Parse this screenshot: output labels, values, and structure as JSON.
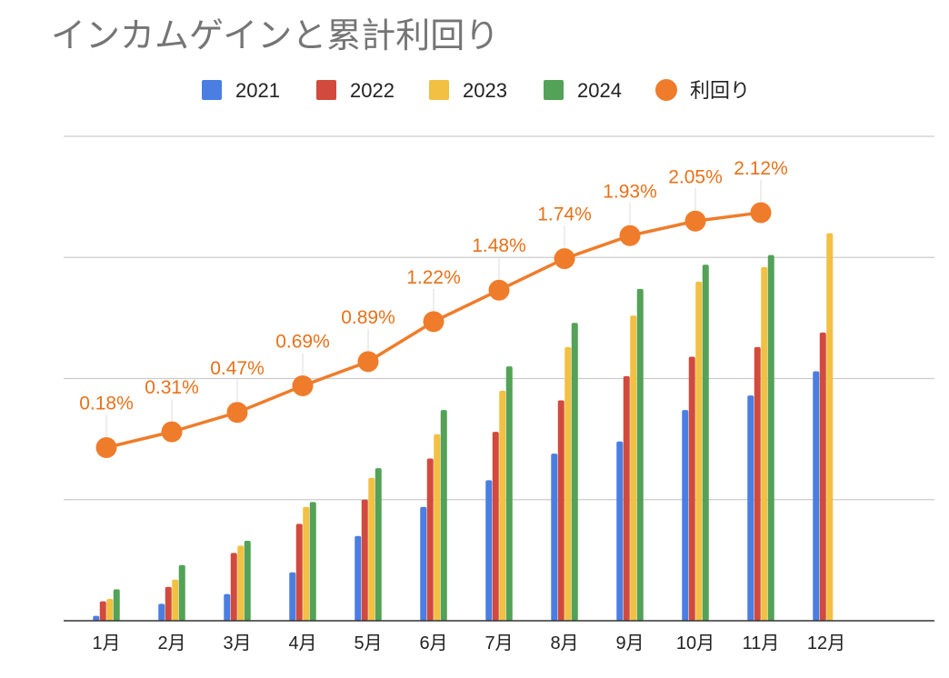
{
  "chart_data": {
    "type": "bar",
    "title": "インカムゲインと累計利回り",
    "categories": [
      "1月",
      "2月",
      "3月",
      "4月",
      "5月",
      "6月",
      "7月",
      "8月",
      "9月",
      "10月",
      "11月",
      "12月"
    ],
    "series": [
      {
        "name": "2021",
        "type": "bar",
        "color": "#4a7ee3",
        "values": [
          1,
          3.5,
          5.5,
          10,
          17.5,
          23.5,
          29,
          34.5,
          37,
          43.5,
          46.5,
          51.5
        ]
      },
      {
        "name": "2022",
        "type": "bar",
        "color": "#d24a3e",
        "values": [
          4,
          7,
          14,
          20,
          25,
          33.5,
          39,
          45.5,
          50.5,
          54.5,
          56.5,
          59.5
        ]
      },
      {
        "name": "2023",
        "type": "bar",
        "color": "#f2c042",
        "values": [
          4.5,
          8.5,
          15.5,
          23.5,
          29.5,
          38.5,
          47.5,
          56.5,
          63,
          70,
          73,
          80
        ]
      },
      {
        "name": "2024",
        "type": "bar",
        "color": "#53a257",
        "values": [
          6.5,
          11.5,
          16.5,
          24.5,
          31.5,
          43.5,
          52.5,
          61.5,
          68.5,
          73.5,
          75.5,
          null
        ]
      },
      {
        "name": "利回り",
        "type": "line",
        "color": "#ef7c2b",
        "values": [
          0.18,
          0.31,
          0.47,
          0.69,
          0.89,
          1.22,
          1.48,
          1.74,
          1.93,
          2.05,
          2.12,
          null
        ],
        "labels": [
          "0.18%",
          "0.31%",
          "0.47%",
          "0.69%",
          "0.89%",
          "1.22%",
          "1.48%",
          "1.74%",
          "1.93%",
          "2.05%",
          "2.12%",
          ""
        ]
      }
    ],
    "xlabel": "",
    "ylabel": "",
    "ylim_bars": [
      0,
      100
    ],
    "ylim_line": [
      -1.25,
      2.75
    ],
    "grid": true,
    "legend": "top-center"
  }
}
